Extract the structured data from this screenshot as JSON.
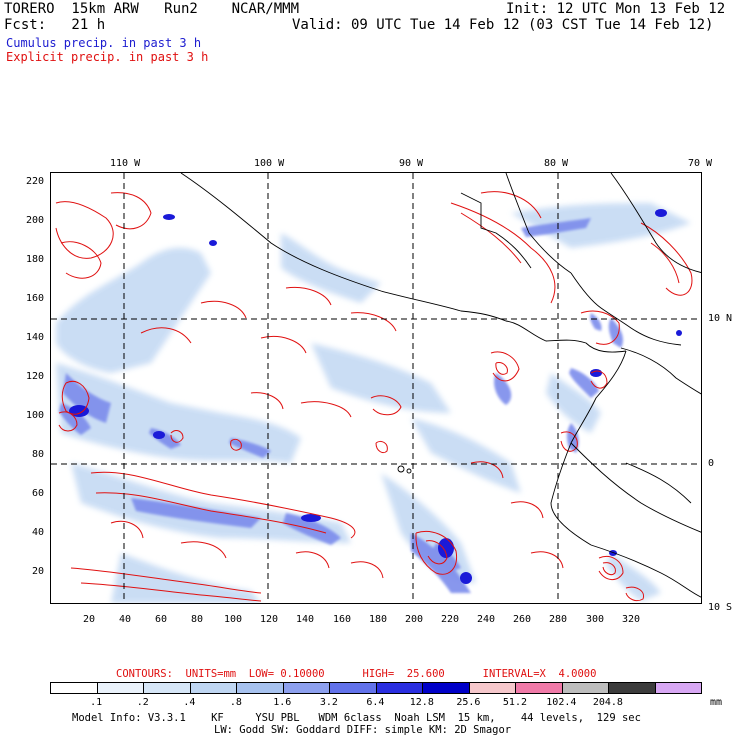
{
  "header": {
    "model": "TORERO  15km ARW   Run2    NCAR/MMM",
    "init": "Init: 12 UTC Mon 13 Feb 12",
    "fcst": "Fcst:   21 h",
    "valid": "Valid: 09 UTC Tue 14 Feb 12 (03 CST Tue 14 Feb 12)",
    "cumulus_label": "Cumulus precip. in past 3 h",
    "explicit_label": "Explicit precip. in past 3 h"
  },
  "map": {
    "lon_labels": [
      "110 W",
      "100 W",
      "90 W",
      "80 W",
      "70 W"
    ],
    "lat_labels": [
      "10 N",
      "0",
      "10 S"
    ],
    "y_ticks": [
      "220",
      "200",
      "180",
      "160",
      "140",
      "120",
      "100",
      "80",
      "60",
      "40",
      "20"
    ],
    "x_ticks": [
      "20",
      "40",
      "60",
      "80",
      "100",
      "120",
      "140",
      "160",
      "180",
      "200",
      "220",
      "240",
      "260",
      "280",
      "300",
      "320"
    ]
  },
  "contours": {
    "text": "CONTOURS:  UNITS=mm  LOW= 0.10000      HIGH=  25.600      INTERVAL=X  4.0000",
    "units": "mm",
    "low": 0.1,
    "high": 25.6,
    "interval_factor": 4.0
  },
  "colorbar": {
    "levels": [
      ".1",
      ".2",
      ".4",
      ".8",
      "1.6",
      "3.2",
      "6.4",
      "12.8",
      "25.6",
      "51.2",
      "102.4",
      "204.8"
    ],
    "unit": "mm",
    "colors": [
      "#ffffff",
      "#eaf2fb",
      "#d6e6f7",
      "#bfd6f2",
      "#a7c2ef",
      "#8da0ee",
      "#6272ea",
      "#2a2ee0",
      "#0000c8",
      "#f6c8cc",
      "#f07aa8",
      "#bdbdbd",
      "#3c3c3c",
      "#d8a8f4"
    ]
  },
  "model_info": {
    "line1": "Model Info: V3.3.1    KF     YSU PBL   WDM 6class  Noah LSM  15 km,    44 levels,  129 sec",
    "line2": "LW: Godd SW: Goddard DIFF: simple KM: 2D Smagor"
  }
}
